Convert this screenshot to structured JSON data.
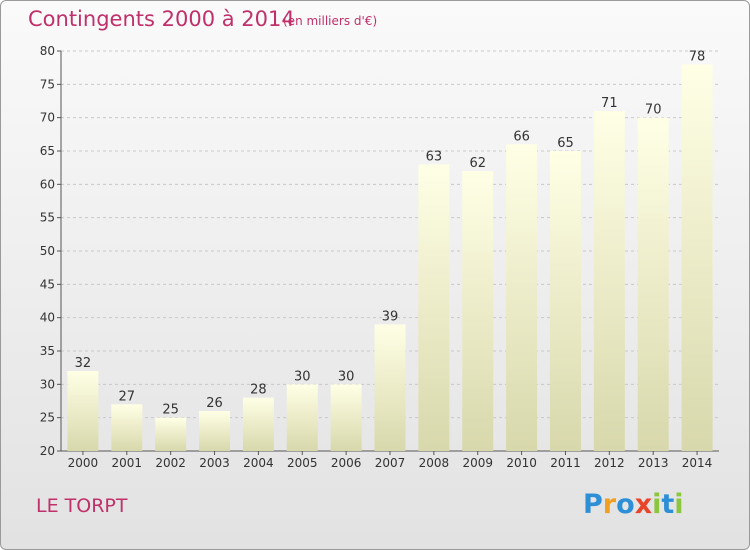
{
  "title": "Contingents 2000 à 2014",
  "subtitle": "(en milliers d'€)",
  "commune": "LE TORPT",
  "logo": {
    "text": "Proxiti",
    "letter_colors": [
      "#2d8fd6",
      "#f0a020",
      "#2d8fd6",
      "#e8442a",
      "#8cc63e",
      "#2d8fd6",
      "#8cc63e"
    ]
  },
  "chart_data": {
    "type": "bar",
    "title": "Contingents 2000 à 2014",
    "subtitle": "(en milliers d'€)",
    "categories": [
      "2000",
      "2001",
      "2002",
      "2003",
      "2004",
      "2005",
      "2006",
      "2007",
      "2008",
      "2009",
      "2010",
      "2011",
      "2012",
      "2013",
      "2014"
    ],
    "values": [
      32,
      27,
      25,
      26,
      28,
      30,
      30,
      39,
      63,
      62,
      66,
      65,
      71,
      70,
      78
    ],
    "ylim": [
      20,
      80
    ],
    "yticks": [
      20,
      25,
      30,
      35,
      40,
      45,
      50,
      55,
      60,
      65,
      70,
      75,
      80
    ],
    "grid": true,
    "colors": {
      "bar_top": "#ffffe6",
      "bar_bottom": "#d8d8ac",
      "grid": "#c8c8c8",
      "axis": "#555555",
      "text": "#333333"
    }
  }
}
